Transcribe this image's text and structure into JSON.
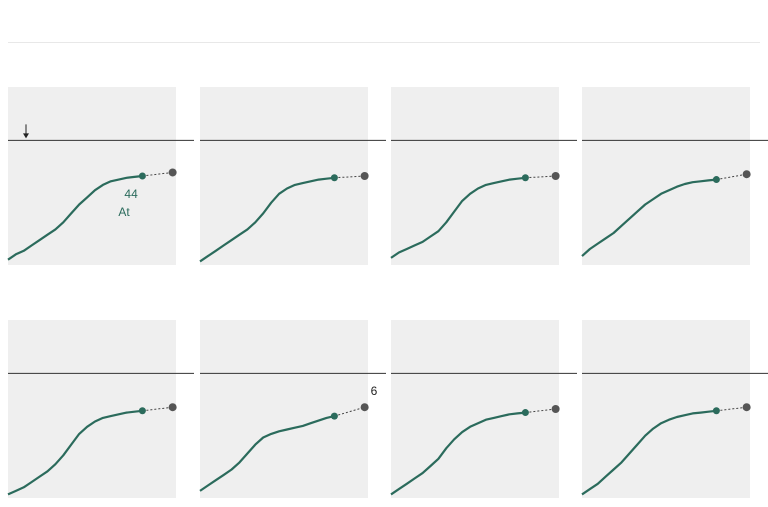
{
  "title": "",
  "colors": {
    "line": "#2b6b5c",
    "target_dot": "#555555",
    "panel_bg": "#efefef",
    "reference_line": "#333333"
  },
  "chart_data": [
    {
      "type": "line",
      "panel_label": "",
      "y_range": [
        0,
        100
      ],
      "reference_value": 70,
      "series": [
        {
          "values": [
            3,
            6,
            8,
            11,
            14,
            17,
            20,
            24,
            29,
            34,
            38,
            42,
            45,
            47,
            48,
            49,
            49.5,
            50
          ]
        }
      ],
      "current_point": 50,
      "target_point": 52,
      "annotations": {
        "reference": "",
        "target": "",
        "current": "44",
        "current_sub": "At"
      }
    },
    {
      "type": "line",
      "panel_label": "",
      "y_range": [
        0,
        100
      ],
      "reference_value": 70,
      "series": [
        {
          "values": [
            2,
            5,
            8,
            11,
            14,
            17,
            20,
            24,
            29,
            35,
            40,
            43,
            45,
            46,
            47,
            48,
            48.5,
            49
          ]
        }
      ],
      "current_point": 49,
      "target_point": 50,
      "annotations": {
        "target": "",
        "current": ""
      }
    },
    {
      "type": "line",
      "panel_label": "",
      "y_range": [
        0,
        100
      ],
      "reference_value": 70,
      "series": [
        {
          "values": [
            4,
            7,
            9,
            11,
            13,
            16,
            19,
            24,
            30,
            36,
            40,
            43,
            45,
            46,
            47,
            48,
            48.5,
            49
          ]
        }
      ],
      "current_point": 49,
      "target_point": 50,
      "annotations": {
        "target": "",
        "current": ""
      }
    },
    {
      "type": "line",
      "panel_label": "",
      "y_range": [
        0,
        100
      ],
      "reference_value": 70,
      "series": [
        {
          "values": [
            5,
            9,
            12,
            15,
            18,
            22,
            26,
            30,
            34,
            37,
            40,
            42,
            44,
            45.5,
            46.5,
            47,
            47.5,
            48
          ]
        }
      ],
      "current_point": 48,
      "target_point": 51,
      "annotations": {
        "target": "",
        "current": ""
      }
    },
    {
      "type": "line",
      "panel_label": "",
      "y_range": [
        0,
        100
      ],
      "reference_value": 70,
      "series": [
        {
          "values": [
            2,
            4,
            6,
            9,
            12,
            15,
            19,
            24,
            30,
            36,
            40,
            43,
            45,
            46,
            47,
            48,
            48.5,
            49
          ]
        }
      ],
      "current_point": 49,
      "target_point": 51,
      "annotations": {
        "target": "",
        "current": ""
      }
    },
    {
      "type": "line",
      "panel_label": "",
      "y_range": [
        0,
        100
      ],
      "reference_value": 70,
      "series": [
        {
          "values": [
            4,
            7,
            10,
            13,
            16,
            20,
            25,
            30,
            34,
            36,
            37.5,
            38.5,
            39.5,
            40.5,
            42,
            43.5,
            45,
            46
          ]
        }
      ],
      "current_point": 46,
      "target_point": 51,
      "annotations": {
        "target": "6",
        "current": ""
      }
    },
    {
      "type": "line",
      "panel_label": "",
      "y_range": [
        0,
        100
      ],
      "reference_value": 70,
      "series": [
        {
          "values": [
            2,
            5,
            8,
            11,
            14,
            18,
            22,
            28,
            33,
            37,
            40,
            42,
            44,
            45,
            46,
            47,
            47.5,
            48
          ]
        }
      ],
      "current_point": 48,
      "target_point": 50,
      "annotations": {
        "target": "",
        "current": ""
      }
    },
    {
      "type": "line",
      "panel_label": "",
      "y_range": [
        0,
        100
      ],
      "reference_value": 70,
      "series": [
        {
          "values": [
            2,
            5,
            8,
            12,
            16,
            20,
            25,
            30,
            35,
            39,
            42,
            44,
            45.5,
            46.5,
            47.5,
            48,
            48.5,
            49
          ]
        }
      ],
      "current_point": 49,
      "target_point": 51,
      "annotations": {
        "target": "",
        "current": ""
      }
    }
  ]
}
